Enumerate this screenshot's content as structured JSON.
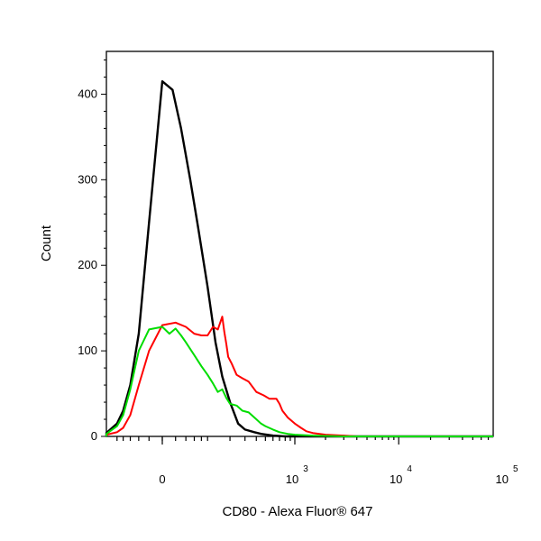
{
  "chart_data": {
    "type": "line",
    "title": "",
    "xlabel": "CD80 - Alexa Fluor® 647",
    "ylabel": "Count",
    "xscale": "biexponential (linear near 0, logarithmic above ~10^2)",
    "ylim": [
      0,
      450
    ],
    "y_ticks": [
      "0",
      "100",
      "200",
      "300",
      "400"
    ],
    "x_ticks": [
      {
        "base": "0",
        "exp": ""
      },
      {
        "base": "10",
        "exp": "3"
      },
      {
        "base": "10",
        "exp": "4"
      },
      {
        "base": "10",
        "exp": "5"
      }
    ],
    "grid": false,
    "legend": "none",
    "series": [
      {
        "color": "#000000",
        "x": [
          -200,
          -150,
          -100,
          -80,
          -60,
          -40,
          -20,
          0,
          15,
          30,
          50,
          70,
          100,
          130,
          160,
          200,
          250,
          300,
          380,
          450,
          600,
          800,
          1000,
          3000,
          10000,
          100000,
          250000
        ],
        "y": [
          0,
          4,
          15,
          30,
          60,
          120,
          250,
          415,
          405,
          360,
          300,
          245,
          175,
          110,
          70,
          40,
          15,
          8,
          5,
          3,
          1,
          0,
          0,
          0,
          0,
          0,
          0
        ]
      },
      {
        "color": "#ff0000",
        "x": [
          -200,
          -150,
          -100,
          -80,
          -60,
          -40,
          -20,
          0,
          20,
          40,
          60,
          80,
          100,
          120,
          140,
          160,
          170,
          180,
          190,
          210,
          240,
          280,
          330,
          400,
          480,
          550,
          600,
          650,
          700,
          750,
          850,
          1000,
          1150,
          1300,
          1500,
          2000,
          3000,
          4000,
          10000,
          100000,
          250000
        ],
        "y": [
          0,
          2,
          5,
          10,
          25,
          60,
          100,
          130,
          133,
          128,
          120,
          118,
          118,
          128,
          125,
          140,
          122,
          108,
          93,
          85,
          72,
          68,
          64,
          52,
          48,
          44,
          44,
          44,
          38,
          30,
          22,
          15,
          10,
          6,
          4,
          2,
          1,
          0,
          0,
          0,
          0
        ]
      },
      {
        "color": "#00dd00",
        "x": [
          -200,
          -150,
          -100,
          -80,
          -60,
          -40,
          -20,
          0,
          10,
          20,
          30,
          40,
          60,
          80,
          100,
          120,
          140,
          160,
          180,
          200,
          240,
          280,
          330,
          400,
          450,
          500,
          600,
          700,
          850,
          1000,
          1500,
          3000,
          10000,
          250000
        ],
        "y": [
          0,
          3,
          12,
          25,
          55,
          100,
          125,
          128,
          120,
          126,
          118,
          110,
          95,
          82,
          72,
          62,
          52,
          55,
          45,
          38,
          36,
          30,
          28,
          20,
          15,
          12,
          8,
          5,
          3,
          2,
          1,
          0,
          0,
          0
        ]
      }
    ]
  }
}
